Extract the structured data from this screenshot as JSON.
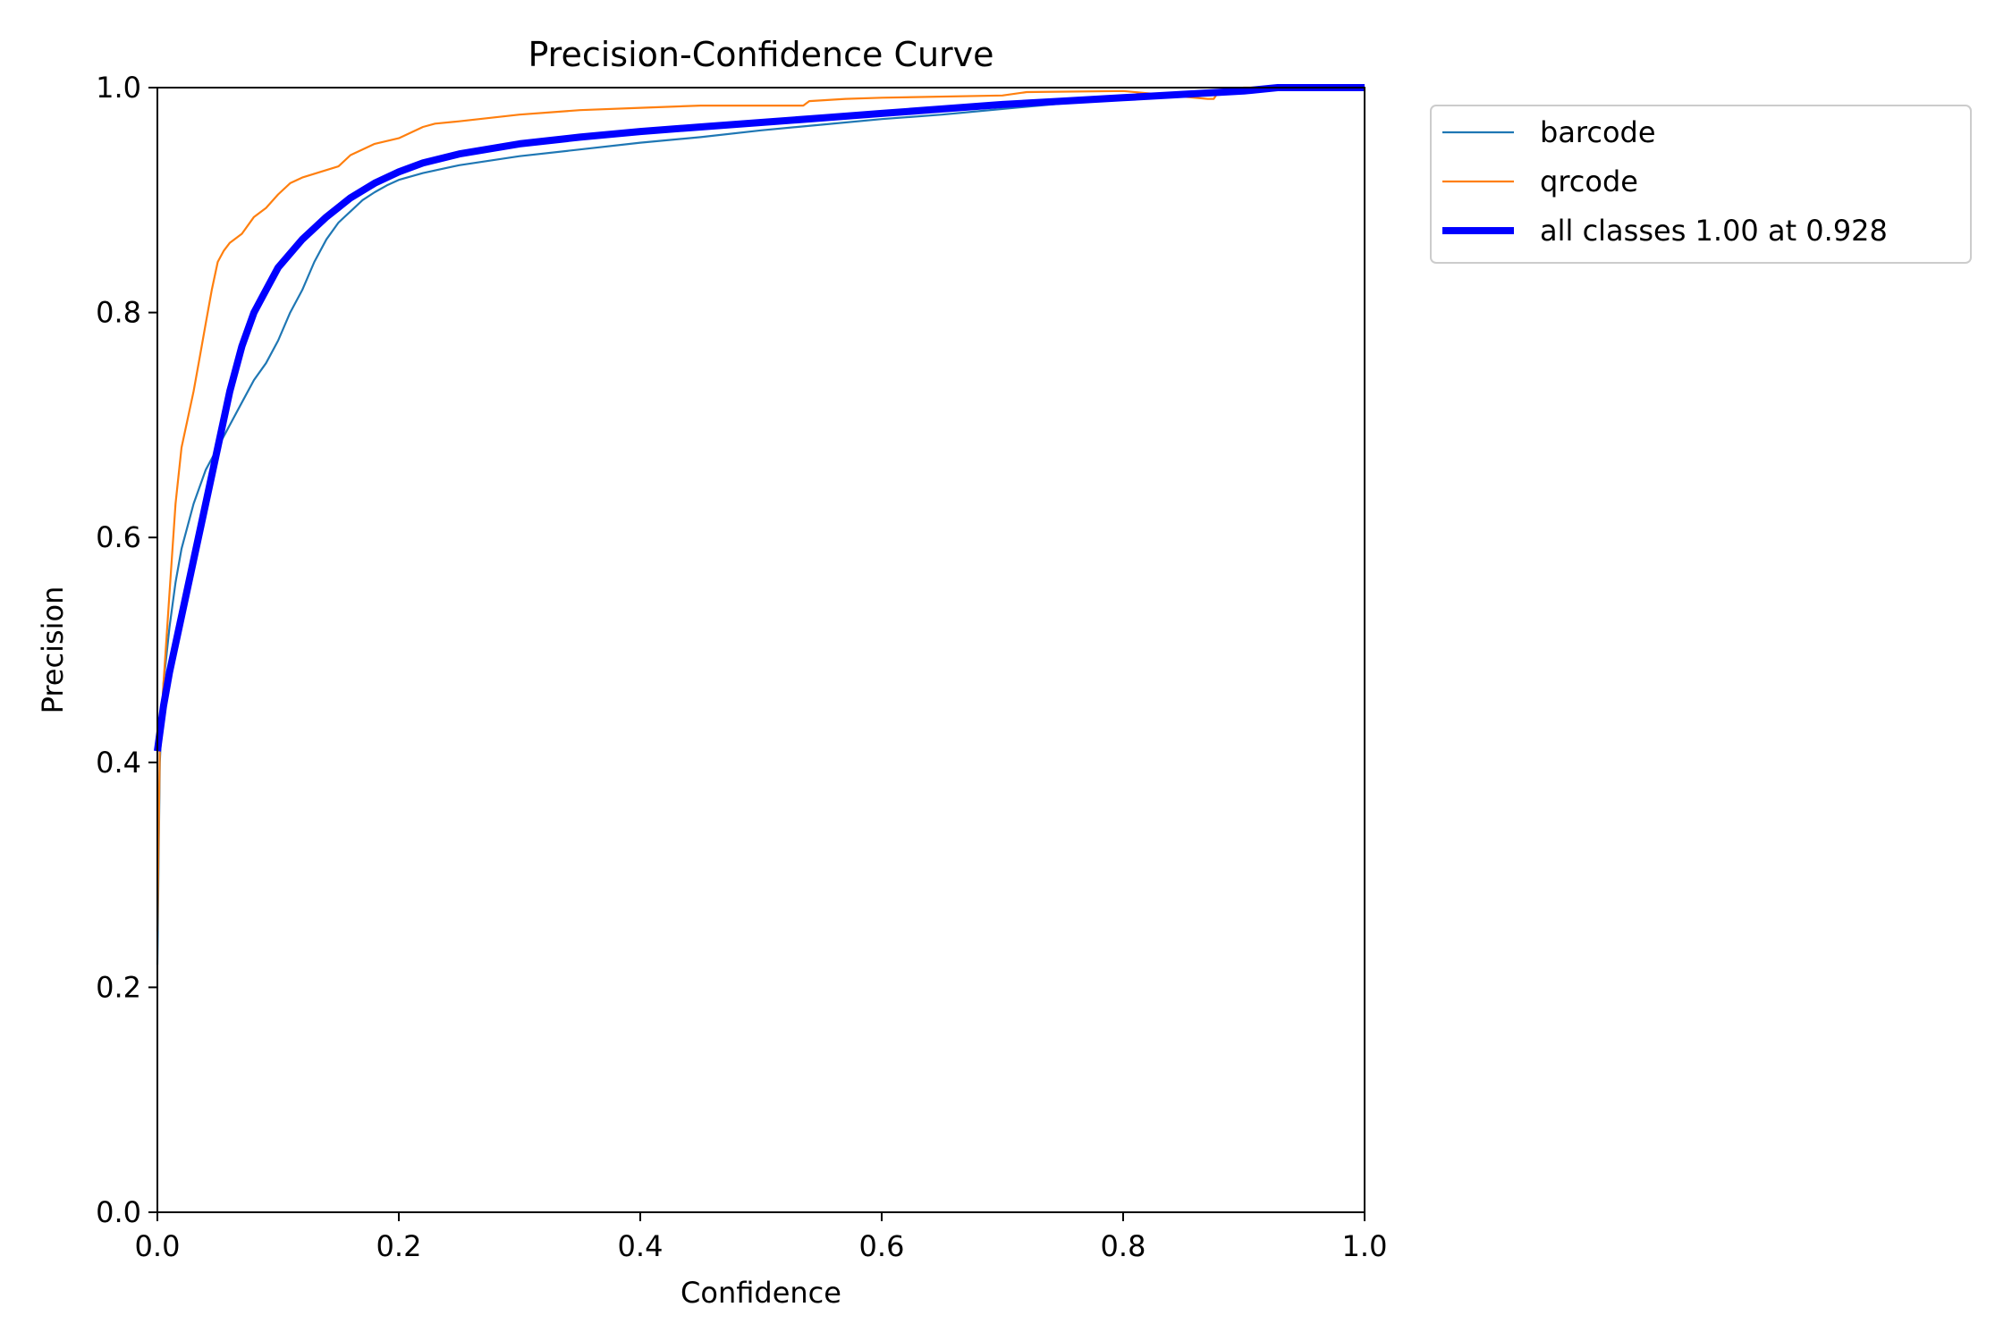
{
  "chart_data": {
    "type": "line",
    "title": "Precision-Confidence Curve",
    "xlabel": "Confidence",
    "ylabel": "Precision",
    "xlim": [
      0,
      1
    ],
    "ylim": [
      0,
      1
    ],
    "xticks": [
      0.0,
      0.2,
      0.4,
      0.6,
      0.8,
      1.0
    ],
    "yticks": [
      0.0,
      0.2,
      0.4,
      0.6,
      0.8,
      1.0
    ],
    "xtick_labels": [
      "0.0",
      "0.2",
      "0.4",
      "0.6",
      "0.8",
      "1.0"
    ],
    "ytick_labels": [
      "0.0",
      "0.2",
      "0.4",
      "0.6",
      "0.8",
      "1.0"
    ],
    "grid": false,
    "legend_placement": "outside-top-right",
    "series": [
      {
        "name": "barcode",
        "color": "#1f77b4",
        "style": "thin",
        "x": [
          0.0,
          0.002,
          0.005,
          0.01,
          0.015,
          0.02,
          0.03,
          0.04,
          0.05,
          0.06,
          0.07,
          0.08,
          0.09,
          0.1,
          0.11,
          0.12,
          0.13,
          0.14,
          0.15,
          0.16,
          0.17,
          0.18,
          0.19,
          0.2,
          0.22,
          0.25,
          0.3,
          0.35,
          0.4,
          0.45,
          0.5,
          0.55,
          0.6,
          0.65,
          0.7,
          0.75,
          0.8,
          0.85,
          0.9,
          0.95,
          1.0
        ],
        "y": [
          0.22,
          0.4,
          0.47,
          0.52,
          0.56,
          0.59,
          0.63,
          0.66,
          0.68,
          0.7,
          0.72,
          0.74,
          0.755,
          0.775,
          0.8,
          0.82,
          0.845,
          0.865,
          0.88,
          0.89,
          0.9,
          0.907,
          0.913,
          0.918,
          0.924,
          0.931,
          0.939,
          0.945,
          0.951,
          0.956,
          0.962,
          0.967,
          0.972,
          0.976,
          0.981,
          0.986,
          0.99,
          0.993,
          0.996,
          1.0,
          1.0
        ]
      },
      {
        "name": "qrcode",
        "color": "#ff7f0e",
        "style": "thin",
        "x": [
          0.0,
          0.002,
          0.005,
          0.01,
          0.015,
          0.02,
          0.03,
          0.035,
          0.04,
          0.045,
          0.05,
          0.055,
          0.06,
          0.07,
          0.08,
          0.09,
          0.1,
          0.11,
          0.12,
          0.15,
          0.16,
          0.18,
          0.2,
          0.22,
          0.23,
          0.25,
          0.3,
          0.35,
          0.4,
          0.45,
          0.5,
          0.535,
          0.54,
          0.57,
          0.6,
          0.7,
          0.72,
          0.8,
          0.87,
          0.875,
          0.88,
          0.9,
          0.95,
          1.0
        ],
        "y": [
          0.25,
          0.41,
          0.47,
          0.55,
          0.63,
          0.68,
          0.73,
          0.76,
          0.79,
          0.82,
          0.845,
          0.855,
          0.862,
          0.87,
          0.885,
          0.893,
          0.905,
          0.915,
          0.92,
          0.93,
          0.94,
          0.95,
          0.955,
          0.965,
          0.968,
          0.97,
          0.976,
          0.98,
          0.982,
          0.984,
          0.984,
          0.984,
          0.988,
          0.99,
          0.991,
          0.993,
          0.996,
          0.997,
          0.99,
          0.99,
          0.998,
          1.0,
          1.0,
          1.0
        ]
      },
      {
        "name": "all classes 1.00 at 0.928",
        "color": "#0000ff",
        "style": "thick",
        "x": [
          0.0,
          0.005,
          0.01,
          0.02,
          0.03,
          0.04,
          0.05,
          0.06,
          0.07,
          0.08,
          0.09,
          0.1,
          0.12,
          0.14,
          0.16,
          0.18,
          0.2,
          0.22,
          0.25,
          0.3,
          0.35,
          0.4,
          0.45,
          0.5,
          0.55,
          0.6,
          0.65,
          0.7,
          0.75,
          0.8,
          0.85,
          0.9,
          0.928,
          0.95,
          1.0
        ],
        "y": [
          0.41,
          0.45,
          0.48,
          0.53,
          0.58,
          0.63,
          0.68,
          0.73,
          0.77,
          0.8,
          0.82,
          0.84,
          0.865,
          0.885,
          0.902,
          0.915,
          0.925,
          0.933,
          0.941,
          0.95,
          0.956,
          0.961,
          0.965,
          0.969,
          0.973,
          0.977,
          0.981,
          0.985,
          0.988,
          0.991,
          0.994,
          0.997,
          1.0,
          1.0,
          1.0
        ]
      }
    ]
  }
}
